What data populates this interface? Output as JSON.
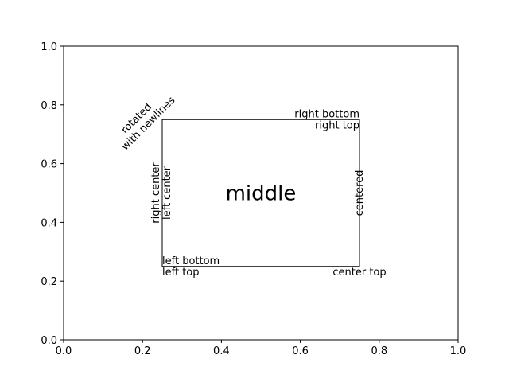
{
  "chart_data": {
    "type": "text-annotation",
    "xlim": [
      0,
      1
    ],
    "ylim": [
      0,
      1
    ],
    "grid": false,
    "xticks": [
      "0.0",
      "0.2",
      "0.4",
      "0.6",
      "0.8",
      "1.0"
    ],
    "yticks": [
      "0.0",
      "0.2",
      "0.4",
      "0.6",
      "0.8",
      "1.0"
    ],
    "rectangle": {
      "x0": 0.25,
      "y0": 0.25,
      "x1": 0.75,
      "y1": 0.75
    },
    "annotations": [
      {
        "key": "left-top",
        "text": "left top",
        "x": 0.25,
        "y": 0.25,
        "ha": "left",
        "va": "top",
        "rotation": 0
      },
      {
        "key": "left-bottom",
        "text": "left bottom",
        "x": 0.25,
        "y": 0.25,
        "ha": "left",
        "va": "bottom",
        "rotation": 0
      },
      {
        "key": "right-bottom",
        "text": "right bottom",
        "x": 0.75,
        "y": 0.75,
        "ha": "right",
        "va": "bottom",
        "rotation": 0
      },
      {
        "key": "right-top",
        "text": "right top",
        "x": 0.75,
        "y": 0.75,
        "ha": "right",
        "va": "top",
        "rotation": 0
      },
      {
        "key": "center-top",
        "text": "center top",
        "x": 0.75,
        "y": 0.25,
        "ha": "center",
        "va": "top",
        "rotation": 0
      },
      {
        "key": "right-center",
        "text": "right center",
        "x": 0.25,
        "y": 0.5,
        "ha": "right",
        "va": "center",
        "rotation": 90
      },
      {
        "key": "left-center",
        "text": "left center",
        "x": 0.25,
        "y": 0.5,
        "ha": "left",
        "va": "center",
        "rotation": 90
      },
      {
        "key": "middle",
        "text": "middle",
        "x": 0.5,
        "y": 0.5,
        "ha": "center",
        "va": "center",
        "rotation": 0,
        "color": "#ff0000",
        "size": "large"
      },
      {
        "key": "centered",
        "text": "centered",
        "x": 0.75,
        "y": 0.5,
        "ha": "center",
        "va": "center",
        "rotation": 90
      },
      {
        "key": "rotated",
        "text": "rotated\nwith newlines",
        "x": 0.25,
        "y": 0.75,
        "ha": "right",
        "va": "bottom",
        "rotation": 45
      }
    ]
  }
}
